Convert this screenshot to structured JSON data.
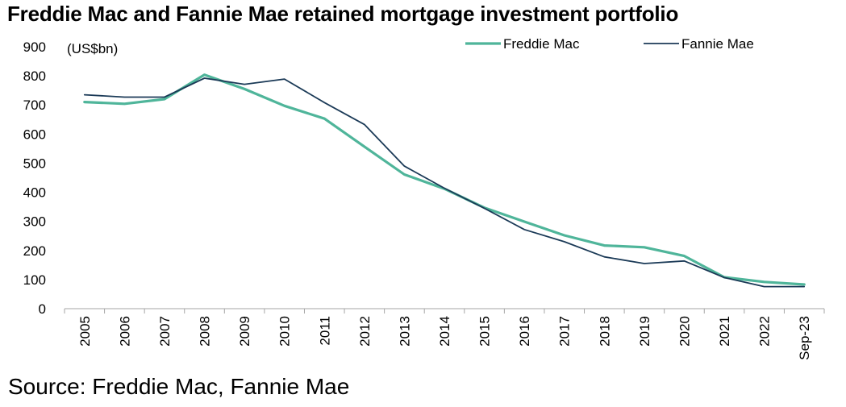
{
  "title": "Freddie Mac and Fannie Mae retained mortgage investment portfolio",
  "source": "Source: Freddie Mac, Fannie Mae",
  "chart_data": {
    "type": "line",
    "title": "Freddie Mac and Fannie Mae retained mortgage investment portfolio",
    "unit_label": "(US$bn)",
    "categories": [
      "2005",
      "2006",
      "2007",
      "2008",
      "2009",
      "2010",
      "2011",
      "2012",
      "2013",
      "2014",
      "2015",
      "2016",
      "2017",
      "2018",
      "2019",
      "2020",
      "2021",
      "2022",
      "Sep-23"
    ],
    "ylim": [
      0,
      900
    ],
    "yticks": [
      0,
      100,
      200,
      300,
      400,
      500,
      600,
      700,
      800,
      900
    ],
    "grid": false,
    "legend_position": "top-right",
    "series": [
      {
        "name": "Freddie Mac",
        "color": "#4fb59a",
        "values": [
          710,
          704,
          720,
          804,
          755,
          697,
          653,
          557,
          461,
          412,
          347,
          299,
          252,
          217,
          211,
          181,
          108,
          92,
          83
        ]
      },
      {
        "name": "Fannie Mae",
        "color": "#1b3a57",
        "values": [
          735,
          727,
          727,
          792,
          771,
          789,
          708,
          633,
          490,
          414,
          345,
          272,
          230,
          178,
          155,
          164,
          107,
          76,
          76
        ]
      }
    ]
  }
}
